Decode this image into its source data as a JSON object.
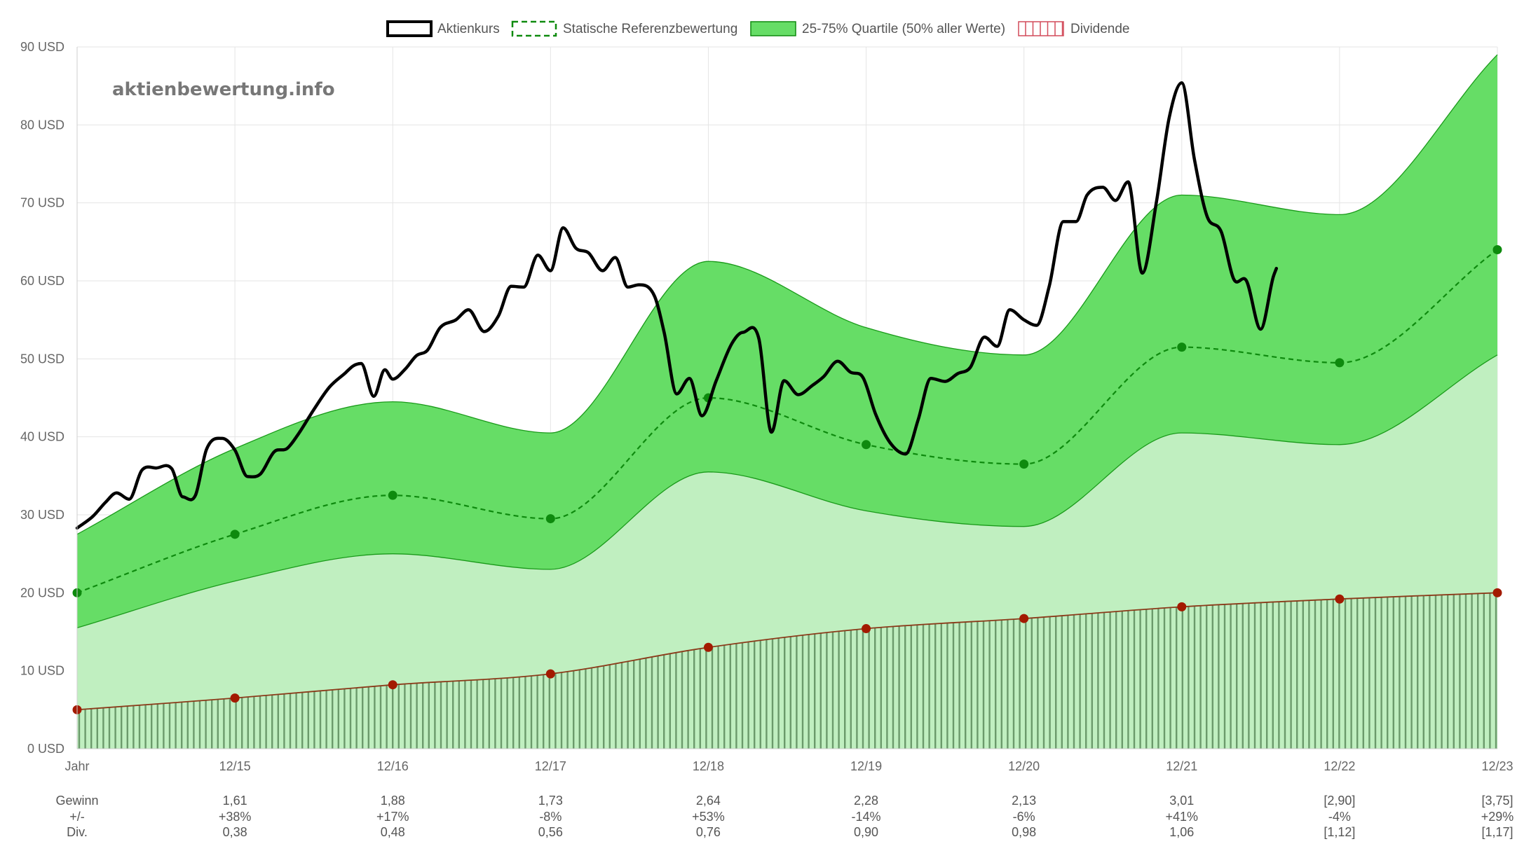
{
  "chart_data": {
    "type": "line",
    "watermark": "aktienbewertung.info",
    "y_ticks": [
      "0 USD",
      "10 USD",
      "20 USD",
      "30 USD",
      "40 USD",
      "50 USD",
      "60 USD",
      "70 USD",
      "80 USD",
      "90 USD"
    ],
    "ylim": [
      0,
      90
    ],
    "x_ticks": [
      "Jahr",
      "12/15",
      "12/16",
      "12/17",
      "12/18",
      "12/19",
      "12/20",
      "12/21",
      "12/22",
      "12/23"
    ],
    "legend": {
      "price": "Aktienkurs",
      "reference": "Statische Referenzbewertung",
      "quartile": "25-75% Quartile (50% aller Werte)",
      "dividend": "Dividende"
    },
    "colors": {
      "price": "#000000",
      "reference": "#0e8a0e",
      "quartile_dark": "#66dd66",
      "quartile_light": "#c0efc0",
      "dividend_marker": "#a31a00",
      "dividend_line": "#8b3a1a",
      "dividend_hatch": "#6b9a6b",
      "grid": "#e5e5e5"
    },
    "upper_quartile": [
      [
        0,
        27.5
      ],
      [
        1,
        38.5
      ],
      [
        2,
        44.5
      ],
      [
        3,
        40.5
      ],
      [
        4,
        62.5
      ],
      [
        5,
        54
      ],
      [
        6,
        50.5
      ],
      [
        7,
        71
      ],
      [
        8,
        68.5
      ],
      [
        9,
        89
      ]
    ],
    "lower_quartile": [
      [
        0,
        15.5
      ],
      [
        1,
        21.5
      ],
      [
        2,
        25
      ],
      [
        3,
        23
      ],
      [
        4,
        35.5
      ],
      [
        5,
        30.5
      ],
      [
        6,
        28.5
      ],
      [
        7,
        40.5
      ],
      [
        8,
        39
      ],
      [
        9,
        50.5
      ]
    ],
    "reference": [
      [
        0,
        20
      ],
      [
        1,
        27.5
      ],
      [
        2,
        32.5
      ],
      [
        3,
        29.5
      ],
      [
        4,
        45
      ],
      [
        5,
        39
      ],
      [
        6,
        36.5
      ],
      [
        7,
        51.5
      ],
      [
        8,
        49.5
      ],
      [
        9,
        64
      ]
    ],
    "dividend": [
      [
        0,
        5
      ],
      [
        1,
        6.5
      ],
      [
        2,
        8.2
      ],
      [
        3,
        9.6
      ],
      [
        4,
        13
      ],
      [
        5,
        15.4
      ],
      [
        6,
        16.7
      ],
      [
        7,
        18.2
      ],
      [
        8,
        19.2
      ],
      [
        9,
        20
      ]
    ],
    "price": [
      [
        0.0,
        28.3
      ],
      [
        0.1,
        29.8
      ],
      [
        0.18,
        31.6
      ],
      [
        0.25,
        32.8
      ],
      [
        0.33,
        32
      ],
      [
        0.41,
        35.7
      ],
      [
        0.5,
        36
      ],
      [
        0.6,
        35.9
      ],
      [
        0.67,
        32.3
      ],
      [
        0.75,
        32.5
      ],
      [
        0.82,
        38.4
      ],
      [
        0.92,
        39.8
      ],
      [
        1.0,
        38.3
      ],
      [
        1.08,
        34.9
      ],
      [
        1.16,
        35.2
      ],
      [
        1.25,
        38.1
      ],
      [
        1.33,
        38.5
      ],
      [
        1.4,
        40.3
      ],
      [
        1.5,
        43.5
      ],
      [
        1.6,
        46.4
      ],
      [
        1.7,
        48.2
      ],
      [
        1.75,
        49.1
      ],
      [
        1.8,
        49.4
      ],
      [
        1.88,
        45.2
      ],
      [
        1.95,
        48.6
      ],
      [
        2.0,
        47.4
      ],
      [
        2.08,
        48.7
      ],
      [
        2.15,
        50.4
      ],
      [
        2.22,
        51.1
      ],
      [
        2.3,
        54
      ],
      [
        2.4,
        55
      ],
      [
        2.48,
        56.3
      ],
      [
        2.58,
        53.5
      ],
      [
        2.67,
        55.5
      ],
      [
        2.75,
        59.3
      ],
      [
        2.83,
        59.2
      ],
      [
        2.92,
        63.3
      ],
      [
        3.0,
        61.3
      ],
      [
        3.08,
        66.8
      ],
      [
        3.16,
        64.2
      ],
      [
        3.24,
        63.6
      ],
      [
        3.33,
        61.3
      ],
      [
        3.41,
        63
      ],
      [
        3.49,
        59.2
      ],
      [
        3.56,
        59.5
      ],
      [
        3.66,
        58
      ],
      [
        3.72,
        53.4
      ],
      [
        3.8,
        45.5
      ],
      [
        3.88,
        47.5
      ],
      [
        3.96,
        42.7
      ],
      [
        4.05,
        47.2
      ],
      [
        4.15,
        52
      ],
      [
        4.22,
        53.4
      ],
      [
        4.32,
        52.6
      ],
      [
        4.4,
        40.6
      ],
      [
        4.48,
        47.2
      ],
      [
        4.57,
        45.4
      ],
      [
        4.66,
        46.6
      ],
      [
        4.73,
        47.7
      ],
      [
        4.82,
        49.7
      ],
      [
        4.9,
        48.3
      ],
      [
        4.98,
        47.6
      ],
      [
        5.06,
        42.9
      ],
      [
        5.15,
        39.3
      ],
      [
        5.25,
        37.8
      ],
      [
        5.33,
        42.2
      ],
      [
        5.41,
        47.5
      ],
      [
        5.5,
        47.1
      ],
      [
        5.58,
        48.1
      ],
      [
        5.66,
        48.9
      ],
      [
        5.75,
        52.8
      ],
      [
        5.83,
        51.6
      ],
      [
        5.91,
        56.3
      ],
      [
        6.0,
        55
      ],
      [
        6.08,
        54.3
      ],
      [
        6.16,
        59.3
      ],
      [
        6.25,
        67.6
      ],
      [
        6.33,
        67.6
      ],
      [
        6.4,
        71
      ],
      [
        6.5,
        72
      ],
      [
        6.58,
        70.3
      ],
      [
        6.66,
        72.7
      ],
      [
        6.75,
        61
      ],
      [
        6.84,
        70.2
      ],
      [
        6.92,
        80.9
      ],
      [
        7.0,
        85.4
      ],
      [
        7.08,
        75.6
      ],
      [
        7.16,
        68.3
      ],
      [
        7.25,
        66.3
      ],
      [
        7.33,
        60.2
      ],
      [
        7.41,
        60
      ],
      [
        7.5,
        53.8
      ],
      [
        7.58,
        60.5
      ],
      [
        7.6,
        61.6
      ]
    ],
    "table": {
      "rows": [
        {
          "label": "Gewinn",
          "values": [
            "1,61",
            "1,88",
            "1,73",
            "2,64",
            "2,28",
            "2,13",
            "3,01",
            "[2,90]",
            "[3,75]"
          ]
        },
        {
          "label": "+/-",
          "values": [
            "+38%",
            "+17%",
            "-8%",
            "+53%",
            "-14%",
            "-6%",
            "+41%",
            "-4%",
            "+29%"
          ]
        },
        {
          "label": "Div.",
          "values": [
            "0,38",
            "0,48",
            "0,56",
            "0,76",
            "0,90",
            "0,98",
            "1,06",
            "[1,12]",
            "[1,17]"
          ]
        }
      ]
    }
  }
}
